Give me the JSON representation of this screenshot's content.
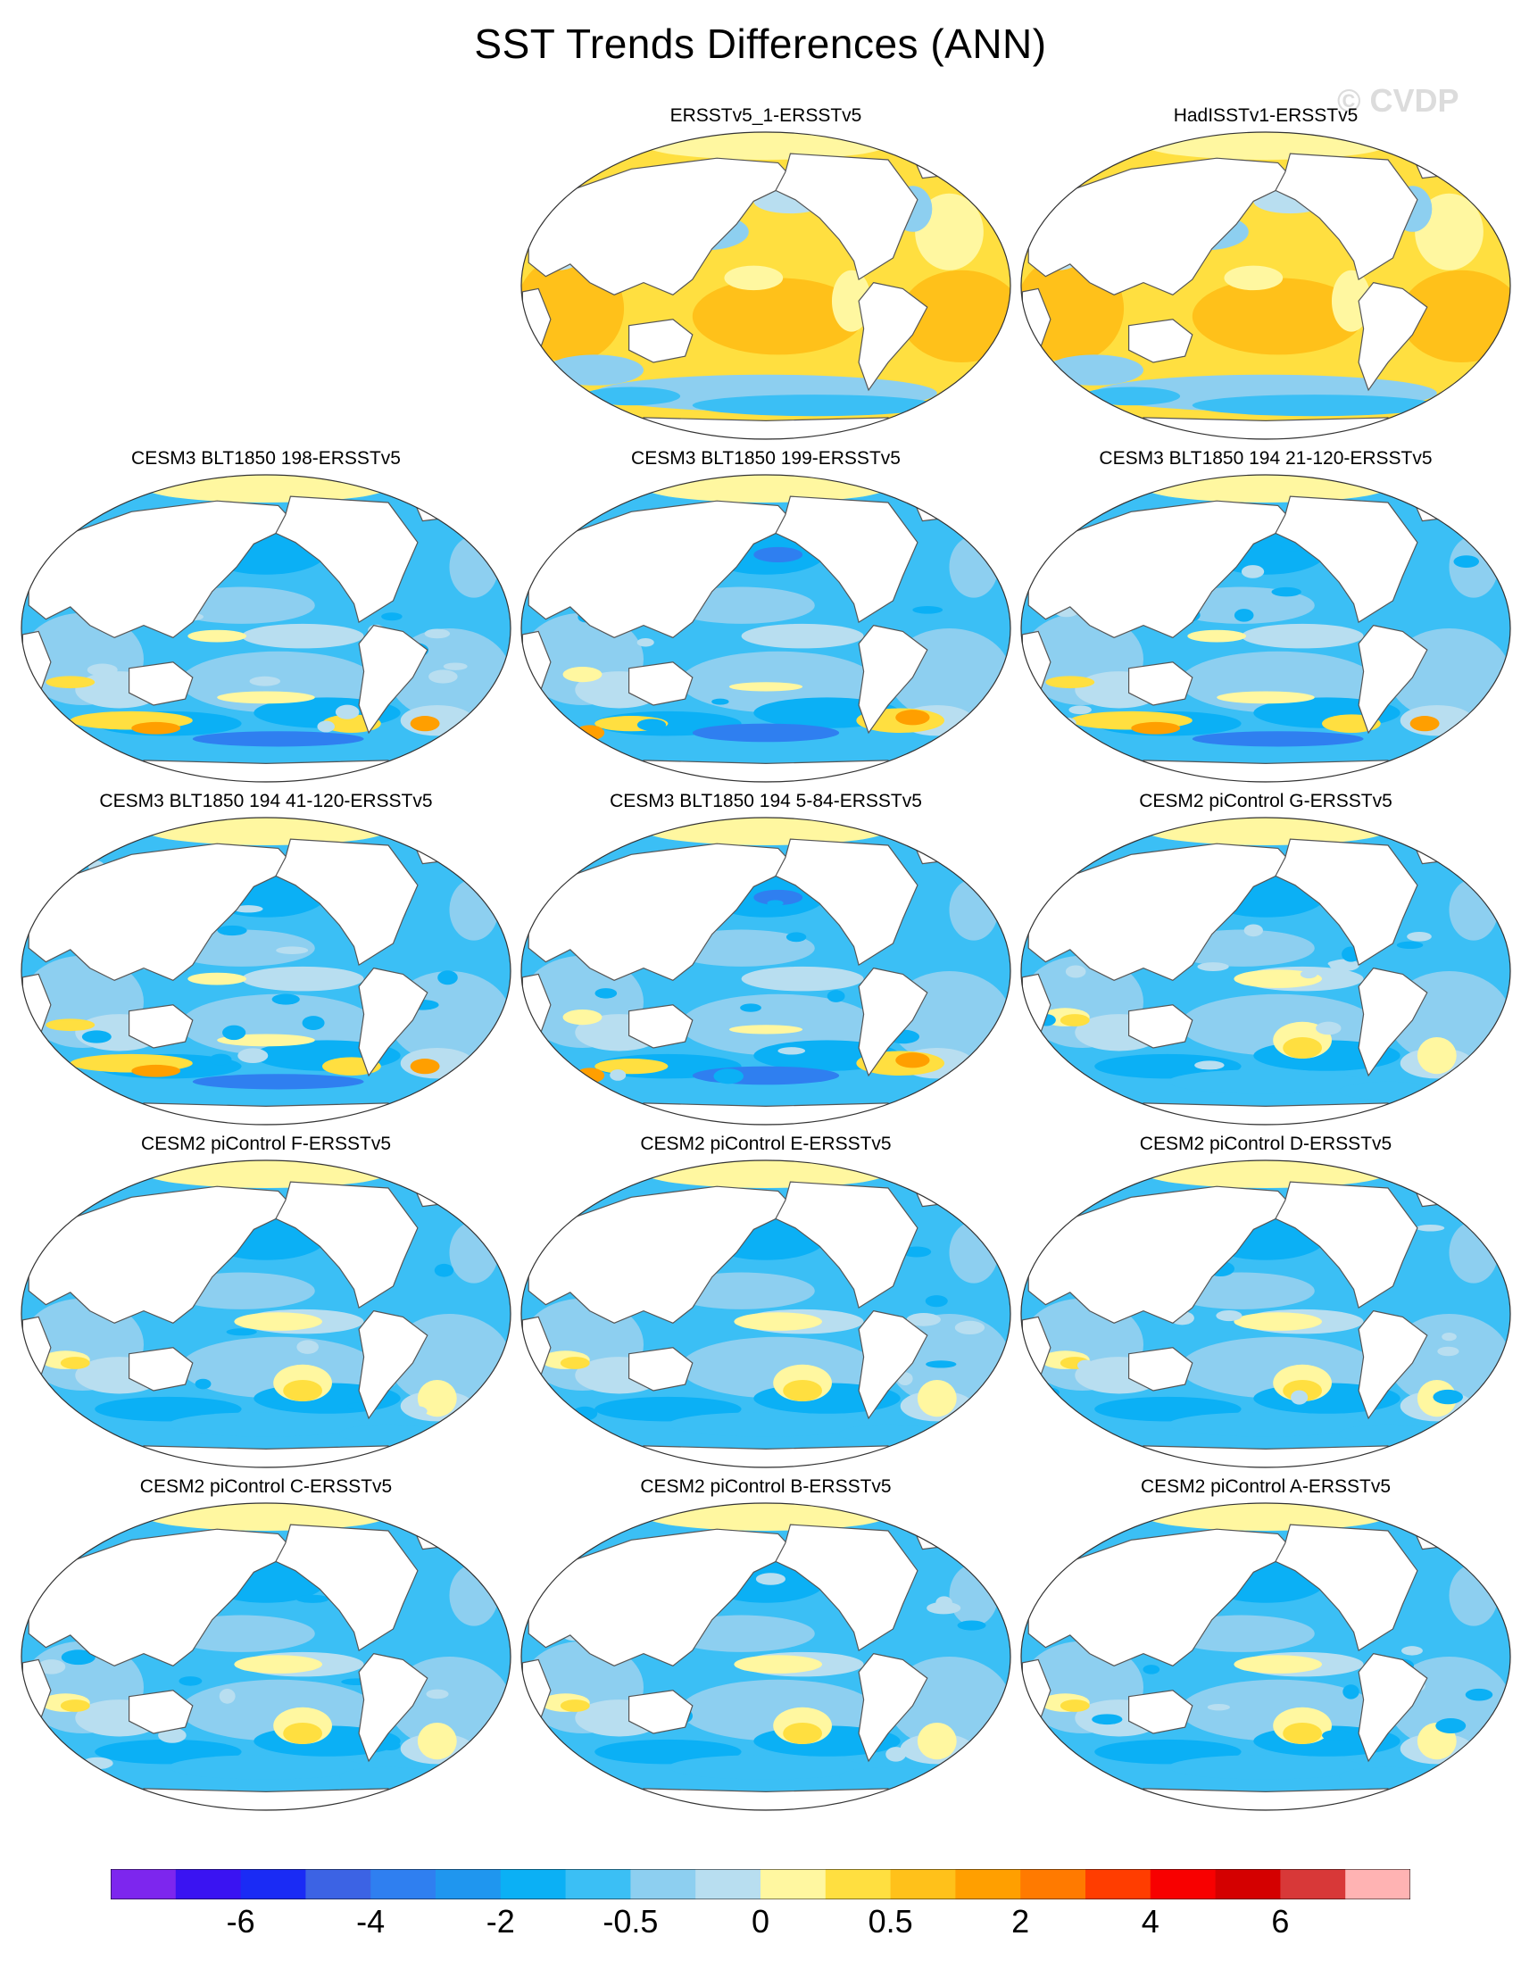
{
  "title": "SST Trends Differences (ANN)",
  "watermark": "© CVDP",
  "chart_data": {
    "type": "contour-map-grid",
    "title": "SST Trends Differences (ANN)",
    "projection": "Robinson (Pacific-centered)",
    "panels": [
      {
        "title": "ERSSTv5_1-ERSSTv5",
        "grid_pos": [
          0,
          1
        ],
        "dominant": "warm",
        "pattern": "warm-dominant"
      },
      {
        "title": "HadISSTv1-ERSSTv5",
        "grid_pos": [
          0,
          2
        ],
        "dominant": "warm",
        "pattern": "warm-dominant"
      },
      {
        "title": "CESM3 BLT1850 198-ERSSTv5",
        "grid_pos": [
          1,
          0
        ],
        "dominant": "cool",
        "pattern": "cool-southern-warm"
      },
      {
        "title": "CESM3 BLT1850 199-ERSSTv5",
        "grid_pos": [
          1,
          1
        ],
        "dominant": "cool",
        "pattern": "cool-strong"
      },
      {
        "title": "CESM3 BLT1850 194 21-120-ERSSTv5",
        "grid_pos": [
          1,
          2
        ],
        "dominant": "cool",
        "pattern": "cool-southern-warm"
      },
      {
        "title": "CESM3 BLT1850 194 41-120-ERSSTv5",
        "grid_pos": [
          2,
          0
        ],
        "dominant": "cool",
        "pattern": "cool-southern-warm"
      },
      {
        "title": "CESM3 BLT1850 194 5-84-ERSSTv5",
        "grid_pos": [
          2,
          1
        ],
        "dominant": "cool",
        "pattern": "cool-strong"
      },
      {
        "title": "CESM2 piControl G-ERSSTv5",
        "grid_pos": [
          2,
          2
        ],
        "dominant": "cool",
        "pattern": "mixed"
      },
      {
        "title": "CESM2 piControl F-ERSSTv5",
        "grid_pos": [
          3,
          0
        ],
        "dominant": "cool",
        "pattern": "mixed"
      },
      {
        "title": "CESM2 piControl E-ERSSTv5",
        "grid_pos": [
          3,
          1
        ],
        "dominant": "cool",
        "pattern": "mixed"
      },
      {
        "title": "CESM2 piControl D-ERSSTv5",
        "grid_pos": [
          3,
          2
        ],
        "dominant": "cool",
        "pattern": "mixed"
      },
      {
        "title": "CESM2 piControl C-ERSSTv5",
        "grid_pos": [
          4,
          0
        ],
        "dominant": "cool",
        "pattern": "mixed"
      },
      {
        "title": "CESM2 piControl B-ERSSTv5",
        "grid_pos": [
          4,
          1
        ],
        "dominant": "cool",
        "pattern": "mixed"
      },
      {
        "title": "CESM2 piControl A-ERSSTv5",
        "grid_pos": [
          4,
          2
        ],
        "dominant": "cool",
        "pattern": "mixed"
      }
    ],
    "colorbar": {
      "colors": [
        "#7d26ee",
        "#3a13f2",
        "#1a2bf5",
        "#3c63e4",
        "#2f7ff0",
        "#1f96ef",
        "#0bb0f5",
        "#3bbff5",
        "#8dcff0",
        "#b8def0",
        "#fff7a0",
        "#ffdf40",
        "#ffc11a",
        "#ff9f00",
        "#ff7a00",
        "#ff3d00",
        "#f80000",
        "#d40000",
        "#d83838",
        "#ffb3b3"
      ],
      "tick_labels": [
        "-6",
        "-4",
        "-2",
        "-0.5",
        "0",
        "0.5",
        "2",
        "4",
        "6"
      ],
      "tick_boundaries": [
        2,
        4,
        6,
        8,
        10,
        12,
        14,
        16,
        18
      ]
    }
  }
}
